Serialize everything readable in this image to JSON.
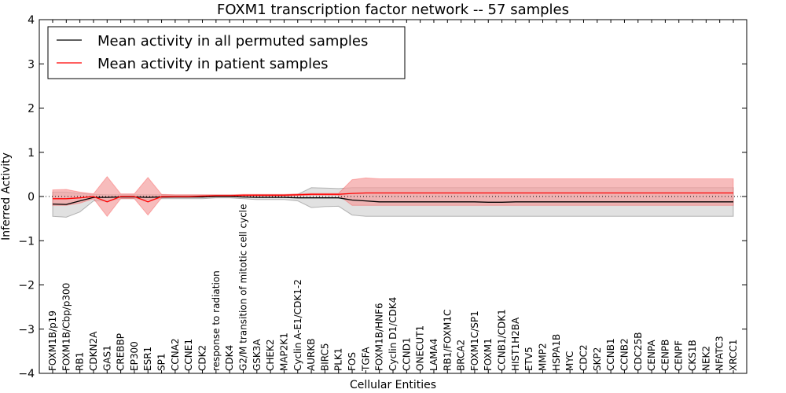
{
  "chart_data": {
    "type": "line",
    "title": "FOXM1 transcription factor network -- 57 samples",
    "xlabel": "Cellular Entities",
    "ylabel": "Inferred Activity",
    "ylim": [
      -4,
      4
    ],
    "yticks": [
      "−4",
      "−3",
      "−2",
      "−1",
      "0",
      "1",
      "2",
      "3",
      "4"
    ],
    "legend_position": "top-left",
    "categories": [
      "FOXM1B/p19",
      "FOXM1B/Cbp/p300",
      "RB1",
      "CDKN2A",
      "GAS1",
      "CREBBP",
      "EP300",
      "ESR1",
      "SP1",
      "CCNA2",
      "CCNE1",
      "CDK2",
      "response to radiation",
      "CDK4",
      "G2/M transition of mitotic cell cycle",
      "GSK3A",
      "CHEK2",
      "MAP2K1",
      "Cyclin A-E1/CDK1-2",
      "AURKB",
      "BIRC5",
      "PLK1",
      "FOS",
      "TGFA",
      "FOXM1B/HNF6",
      "Cyclin D1/CDK4",
      "CCND1",
      "ONECUT1",
      "LAMA4",
      "RB1/FOXM1C",
      "BRCA2",
      "FOXM1C/SP1",
      "FOXM1",
      "CCNB1/CDK1",
      "HIST1H2BA",
      "ETV5",
      "MMP2",
      "HSPA1B",
      "MYC",
      "CDC2",
      "SKP2",
      "CCNB1",
      "CCNB2",
      "CDC25B",
      "CENPA",
      "CENPB",
      "CENPF",
      "CKS1B",
      "NEK2",
      "NFATC3",
      "XRCC1"
    ],
    "series": [
      {
        "name": "Mean activity in all permuted samples",
        "color": "#000000",
        "band_color": "#c8c8c8",
        "values": [
          -0.17,
          -0.18,
          -0.1,
          -0.02,
          -0.02,
          -0.01,
          -0.01,
          -0.02,
          -0.01,
          -0.01,
          -0.01,
          -0.01,
          0.0,
          0.0,
          -0.01,
          -0.02,
          -0.02,
          -0.02,
          -0.03,
          -0.03,
          -0.03,
          -0.03,
          -0.08,
          -0.1,
          -0.12,
          -0.12,
          -0.12,
          -0.12,
          -0.12,
          -0.12,
          -0.12,
          -0.12,
          -0.13,
          -0.13,
          -0.12,
          -0.12,
          -0.12,
          -0.12,
          -0.12,
          -0.12,
          -0.12,
          -0.12,
          -0.12,
          -0.12,
          -0.12,
          -0.12,
          -0.12,
          -0.12,
          -0.12,
          -0.12,
          -0.12
        ],
        "band_lower": [
          -0.45,
          -0.47,
          -0.35,
          -0.1,
          -0.1,
          -0.05,
          -0.05,
          -0.07,
          -0.05,
          -0.05,
          -0.05,
          -0.05,
          -0.03,
          -0.03,
          -0.05,
          -0.07,
          -0.07,
          -0.07,
          -0.1,
          -0.25,
          -0.23,
          -0.22,
          -0.42,
          -0.45,
          -0.45,
          -0.45,
          -0.45,
          -0.45,
          -0.45,
          -0.45,
          -0.45,
          -0.45,
          -0.45,
          -0.45,
          -0.45,
          -0.45,
          -0.45,
          -0.45,
          -0.45,
          -0.45,
          -0.45,
          -0.45,
          -0.45,
          -0.45,
          -0.45,
          -0.45,
          -0.45,
          -0.45,
          -0.45,
          -0.45,
          -0.45
        ],
        "band_upper": [
          0.1,
          0.1,
          0.07,
          0.05,
          0.04,
          0.04,
          0.04,
          0.04,
          0.04,
          0.03,
          0.03,
          0.03,
          0.03,
          0.03,
          0.03,
          0.04,
          0.04,
          0.04,
          0.05,
          0.2,
          0.19,
          0.18,
          0.2,
          0.2,
          0.2,
          0.2,
          0.2,
          0.2,
          0.2,
          0.2,
          0.2,
          0.2,
          0.2,
          0.2,
          0.2,
          0.2,
          0.2,
          0.2,
          0.2,
          0.2,
          0.2,
          0.2,
          0.2,
          0.2,
          0.2,
          0.2,
          0.2,
          0.2,
          0.2,
          0.2,
          0.2
        ]
      },
      {
        "name": "Mean activity in patient samples",
        "color": "#ff0000",
        "band_color": "#f4a0a0",
        "values": [
          -0.05,
          -0.05,
          -0.03,
          0.0,
          -0.12,
          0.0,
          0.0,
          -0.12,
          0.0,
          0.0,
          0.0,
          0.01,
          0.02,
          0.02,
          0.03,
          0.03,
          0.03,
          0.03,
          0.04,
          0.05,
          0.05,
          0.05,
          0.07,
          0.08,
          0.08,
          0.08,
          0.08,
          0.08,
          0.08,
          0.08,
          0.08,
          0.08,
          0.08,
          0.08,
          0.08,
          0.08,
          0.08,
          0.08,
          0.08,
          0.08,
          0.08,
          0.08,
          0.08,
          0.08,
          0.08,
          0.08,
          0.08,
          0.08,
          0.08,
          0.08,
          0.08
        ],
        "band_lower": [
          -0.2,
          -0.2,
          -0.15,
          -0.05,
          -0.45,
          -0.05,
          -0.05,
          -0.42,
          -0.03,
          -0.02,
          -0.02,
          -0.01,
          0.0,
          0.0,
          0.01,
          0.01,
          0.01,
          0.01,
          0.02,
          0.03,
          0.03,
          0.03,
          -0.2,
          -0.2,
          -0.2,
          -0.2,
          -0.2,
          -0.2,
          -0.2,
          -0.2,
          -0.2,
          -0.2,
          -0.2,
          -0.2,
          -0.2,
          -0.2,
          -0.2,
          -0.2,
          -0.2,
          -0.2,
          -0.2,
          -0.2,
          -0.2,
          -0.2,
          -0.2,
          -0.2,
          -0.2,
          -0.2,
          -0.2,
          -0.2,
          -0.2
        ],
        "band_upper": [
          0.15,
          0.16,
          0.1,
          0.06,
          0.45,
          0.06,
          0.06,
          0.43,
          0.05,
          0.04,
          0.04,
          0.04,
          0.04,
          0.04,
          0.05,
          0.05,
          0.05,
          0.05,
          0.06,
          0.07,
          0.07,
          0.07,
          0.38,
          0.42,
          0.4,
          0.4,
          0.4,
          0.4,
          0.4,
          0.4,
          0.4,
          0.4,
          0.4,
          0.4,
          0.4,
          0.4,
          0.4,
          0.4,
          0.4,
          0.4,
          0.4,
          0.4,
          0.4,
          0.4,
          0.4,
          0.4,
          0.4,
          0.4,
          0.4,
          0.4,
          0.4
        ]
      }
    ]
  }
}
